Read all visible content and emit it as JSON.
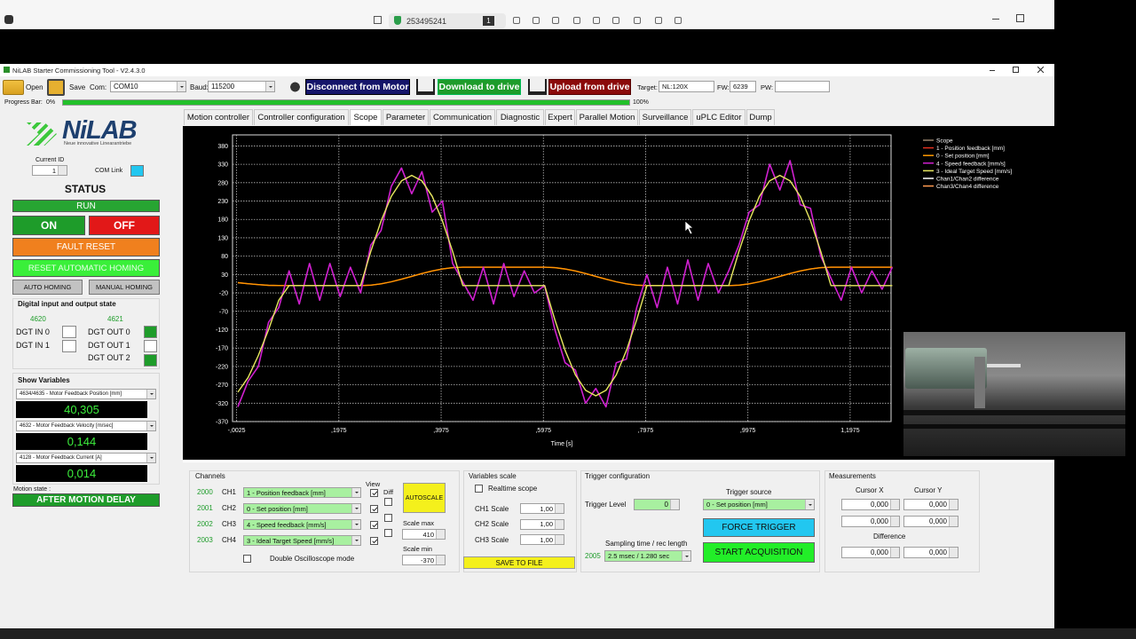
{
  "browser": {
    "session_id": "253495241",
    "badge": "1"
  },
  "window": {
    "title": "NiLAB Starter Commissioning Tool - V2.4.3.0"
  },
  "toolbar": {
    "open": "Open",
    "save": "Save",
    "com_label": "Com:",
    "com": "COM10",
    "baud_label": "Baud:",
    "baud": "115200",
    "disconnect": "Disconnect from Motor",
    "download": "Download to drive",
    "upload": "Upload from drive",
    "target_label": "Target:",
    "target": "NL:120X",
    "fw_label": "FW:",
    "fw": "6239",
    "pw_label": "PW:"
  },
  "progress": {
    "label": "Progress Bar:",
    "start": "0%",
    "end": "100%"
  },
  "tabs": [
    "Motion controller",
    "Controller configuration",
    "Scope",
    "Parameter",
    "Communication",
    "Diagnostic",
    "Expert",
    "Parallel Motion",
    "Surveillance",
    "uPLC Editor",
    "Dump"
  ],
  "left_panel": {
    "logo": "NiLAB",
    "tagline": "Neue innovative Linearantriebe",
    "current_id_label": "Current ID",
    "current_id": "1",
    "com_link": "COM Link",
    "status": "STATUS",
    "run": "RUN",
    "on": "ON",
    "off": "OFF",
    "fault_reset": "FAULT RESET",
    "reset_homing": "RESET AUTOMATIC HOMING",
    "auto_homing": "AUTO HOMING",
    "manual_homing": "MANUAL HOMING",
    "dio_title": "Digital input and output state",
    "in_address": "4620",
    "out_address": "4621",
    "inputs": [
      "DGT IN 0",
      "DGT IN 1"
    ],
    "outputs": [
      "DGT OUT 0",
      "DGT OUT 1",
      "DGT OUT 2"
    ],
    "show_variables": "Show Variables",
    "variables": [
      {
        "name": "4634/4635 - Motor Feedback Position [mm]",
        "value": "40,305"
      },
      {
        "name": "4632 - Motor Feedback Velocity [m/sec]",
        "value": "0,144"
      },
      {
        "name": "4128 - Motor Feedback Current [A]",
        "value": "0,014"
      }
    ],
    "motion_state_label": "Motion state :",
    "motion_state": "AFTER MOTION DELAY"
  },
  "chart_data": {
    "type": "line",
    "legend_title": "Scope",
    "x_label": "Time [s]",
    "grid": true,
    "xlim": [
      -0.0105,
      1.2775
    ],
    "ylim": [
      -370,
      410
    ],
    "xticks": [
      {
        "value": -0.0025,
        "label": "-,0025"
      },
      {
        "value": 0.1975,
        "label": ",1975"
      },
      {
        "value": 0.3975,
        "label": ",3975"
      },
      {
        "value": 0.5975,
        "label": ",5975"
      },
      {
        "value": 0.7975,
        "label": ",7975"
      },
      {
        "value": 0.9975,
        "label": ",9975"
      },
      {
        "value": 1.1975,
        "label": "1,1975"
      }
    ],
    "yticks": [
      380,
      330,
      280,
      230,
      180,
      130,
      80,
      30,
      -20,
      -70,
      -120,
      -170,
      -220,
      -270,
      -320,
      -370
    ],
    "x": [
      0,
      0.02,
      0.04,
      0.06,
      0.08,
      0.1,
      0.12,
      0.14,
      0.16,
      0.18,
      0.2,
      0.22,
      0.24,
      0.26,
      0.28,
      0.3,
      0.32,
      0.34,
      0.36,
      0.38,
      0.4,
      0.42,
      0.44,
      0.46,
      0.48,
      0.5,
      0.52,
      0.54,
      0.56,
      0.58,
      0.6,
      0.62,
      0.64,
      0.66,
      0.68,
      0.7,
      0.72,
      0.74,
      0.76,
      0.78,
      0.8,
      0.82,
      0.84,
      0.86,
      0.88,
      0.9,
      0.92,
      0.94,
      0.96,
      0.98,
      1.0,
      1.02,
      1.04,
      1.06,
      1.08,
      1.1,
      1.12,
      1.14,
      1.16,
      1.18,
      1.2,
      1.22,
      1.24,
      1.26,
      1.28
    ],
    "series": [
      {
        "name": "1 - Position feedback [mm]",
        "color": "#e03020",
        "values": [
          8,
          5,
          2.5,
          0.8,
          0.1,
          0,
          0,
          0,
          0,
          0,
          0,
          0,
          0,
          1.2,
          4.8,
          10.3,
          17.3,
          25,
          32.7,
          39.7,
          45.2,
          48.8,
          50,
          50,
          50,
          50,
          50,
          50,
          50,
          50,
          50,
          48.8,
          45.2,
          39.7,
          32.7,
          25,
          17.3,
          10.3,
          4.8,
          1.2,
          0,
          0,
          0,
          0,
          0,
          0,
          0,
          0,
          0,
          1.2,
          4.8,
          10.3,
          17.3,
          25,
          32.7,
          39.7,
          45.2,
          48.8,
          50,
          50,
          50,
          50,
          50,
          50,
          50
        ]
      },
      {
        "name": "0 - Set position [mm]",
        "color": "#ff9a00",
        "values": [
          8,
          5,
          2.5,
          0.8,
          0.1,
          0,
          0,
          0,
          0,
          0,
          0,
          0,
          0,
          1.2,
          4.8,
          10.3,
          17.3,
          25,
          32.7,
          39.7,
          45.2,
          48.8,
          50,
          50,
          50,
          50,
          50,
          50,
          50,
          50,
          50,
          48.8,
          45.2,
          39.7,
          32.7,
          25,
          17.3,
          10.3,
          4.8,
          1.2,
          0,
          0,
          0,
          0,
          0,
          0,
          0,
          0,
          0,
          1.2,
          4.8,
          10.3,
          17.3,
          25,
          32.7,
          39.7,
          45.2,
          48.8,
          50,
          50,
          50,
          50,
          50,
          50,
          50
        ]
      },
      {
        "name": "4 - Speed feedback [mm/s]",
        "color": "#d020d0",
        "values": [
          -330,
          -260,
          -220,
          -100,
          -60,
          40,
          -50,
          60,
          -40,
          60,
          -30,
          50,
          -20,
          110,
          150,
          270,
          320,
          250,
          310,
          200,
          230,
          60,
          10,
          -40,
          50,
          -50,
          60,
          -30,
          40,
          -20,
          0,
          -120,
          -210,
          -230,
          -320,
          -280,
          -330,
          -210,
          -200,
          -60,
          30,
          -60,
          50,
          -50,
          70,
          -40,
          60,
          -20,
          40,
          110,
          200,
          220,
          330,
          260,
          340,
          220,
          210,
          80,
          20,
          -40,
          50,
          -20,
          40,
          -10,
          50
        ]
      },
      {
        "name": "3 - Ideal Target Speed [mm/s]",
        "color": "#e8e860",
        "values": [
          -290,
          -250,
          -190,
          -120,
          -40,
          0,
          0,
          0,
          0,
          0,
          0,
          0,
          0,
          93,
          176,
          243,
          285,
          300,
          285,
          243,
          176,
          93,
          0,
          0,
          0,
          0,
          0,
          0,
          0,
          0,
          0,
          -93,
          -176,
          -243,
          -285,
          -300,
          -285,
          -243,
          -176,
          -93,
          0,
          0,
          0,
          0,
          0,
          0,
          0,
          0,
          0,
          93,
          176,
          243,
          285,
          300,
          285,
          243,
          176,
          93,
          0,
          0,
          0,
          0,
          0,
          0,
          0
        ]
      }
    ],
    "extra_legend": [
      {
        "name": "Chan1/Chan2 difference",
        "color": "#ffffff"
      },
      {
        "name": "Chan3/Chan4 difference",
        "color": "#ff9a50"
      }
    ]
  },
  "scope_controls": {
    "channels_title": "Channels",
    "view": "View",
    "diff": "Diff",
    "rows": [
      {
        "number": "2000",
        "channel": "CH1",
        "source": "1 - Position feedback [mm]"
      },
      {
        "number": "2001",
        "channel": "CH2",
        "source": "0 - Set position [mm]"
      },
      {
        "number": "2002",
        "channel": "CH3",
        "source": "4 - Speed feedback [mm/s]"
      },
      {
        "number": "2003",
        "channel": "CH4",
        "source": "3 - Ideal Target Speed [mm/s]"
      }
    ],
    "autoscale": "AUTOSCALE",
    "scale_max_label": "Scale max",
    "scale_max": "410",
    "scale_min_label": "Scale min",
    "scale_min": "-370",
    "double_mode": "Double Oscilloscope mode"
  },
  "variables_scale": {
    "title": "Variables scale",
    "realtime": "Realtime scope",
    "scales": [
      {
        "label": "CH1 Scale",
        "value": "1,00"
      },
      {
        "label": "CH2 Scale",
        "value": "1,00"
      },
      {
        "label": "CH3 Scale",
        "value": "1,00"
      }
    ],
    "save": "SAVE TO FILE"
  },
  "trigger": {
    "title": "Trigger configuration",
    "level_label": "Trigger Level",
    "level": "0",
    "source_label": "Trigger source",
    "source": "0 - Set position [mm]",
    "force": "FORCE TRIGGER",
    "sampling_label": "Sampling time / rec length",
    "sampling_address": "2005",
    "sampling": "2.5 msec / 1.280 sec",
    "start": "START ACQUISITION"
  },
  "measurements": {
    "title": "Measurements",
    "cursor_x": "Cursor X",
    "cursor_y": "Cursor Y",
    "rows": [
      [
        "0,000",
        "0,000"
      ],
      [
        "0,000",
        "0,000"
      ]
    ],
    "difference": "Difference",
    "difference_values": [
      "0,000",
      "0,000"
    ]
  }
}
